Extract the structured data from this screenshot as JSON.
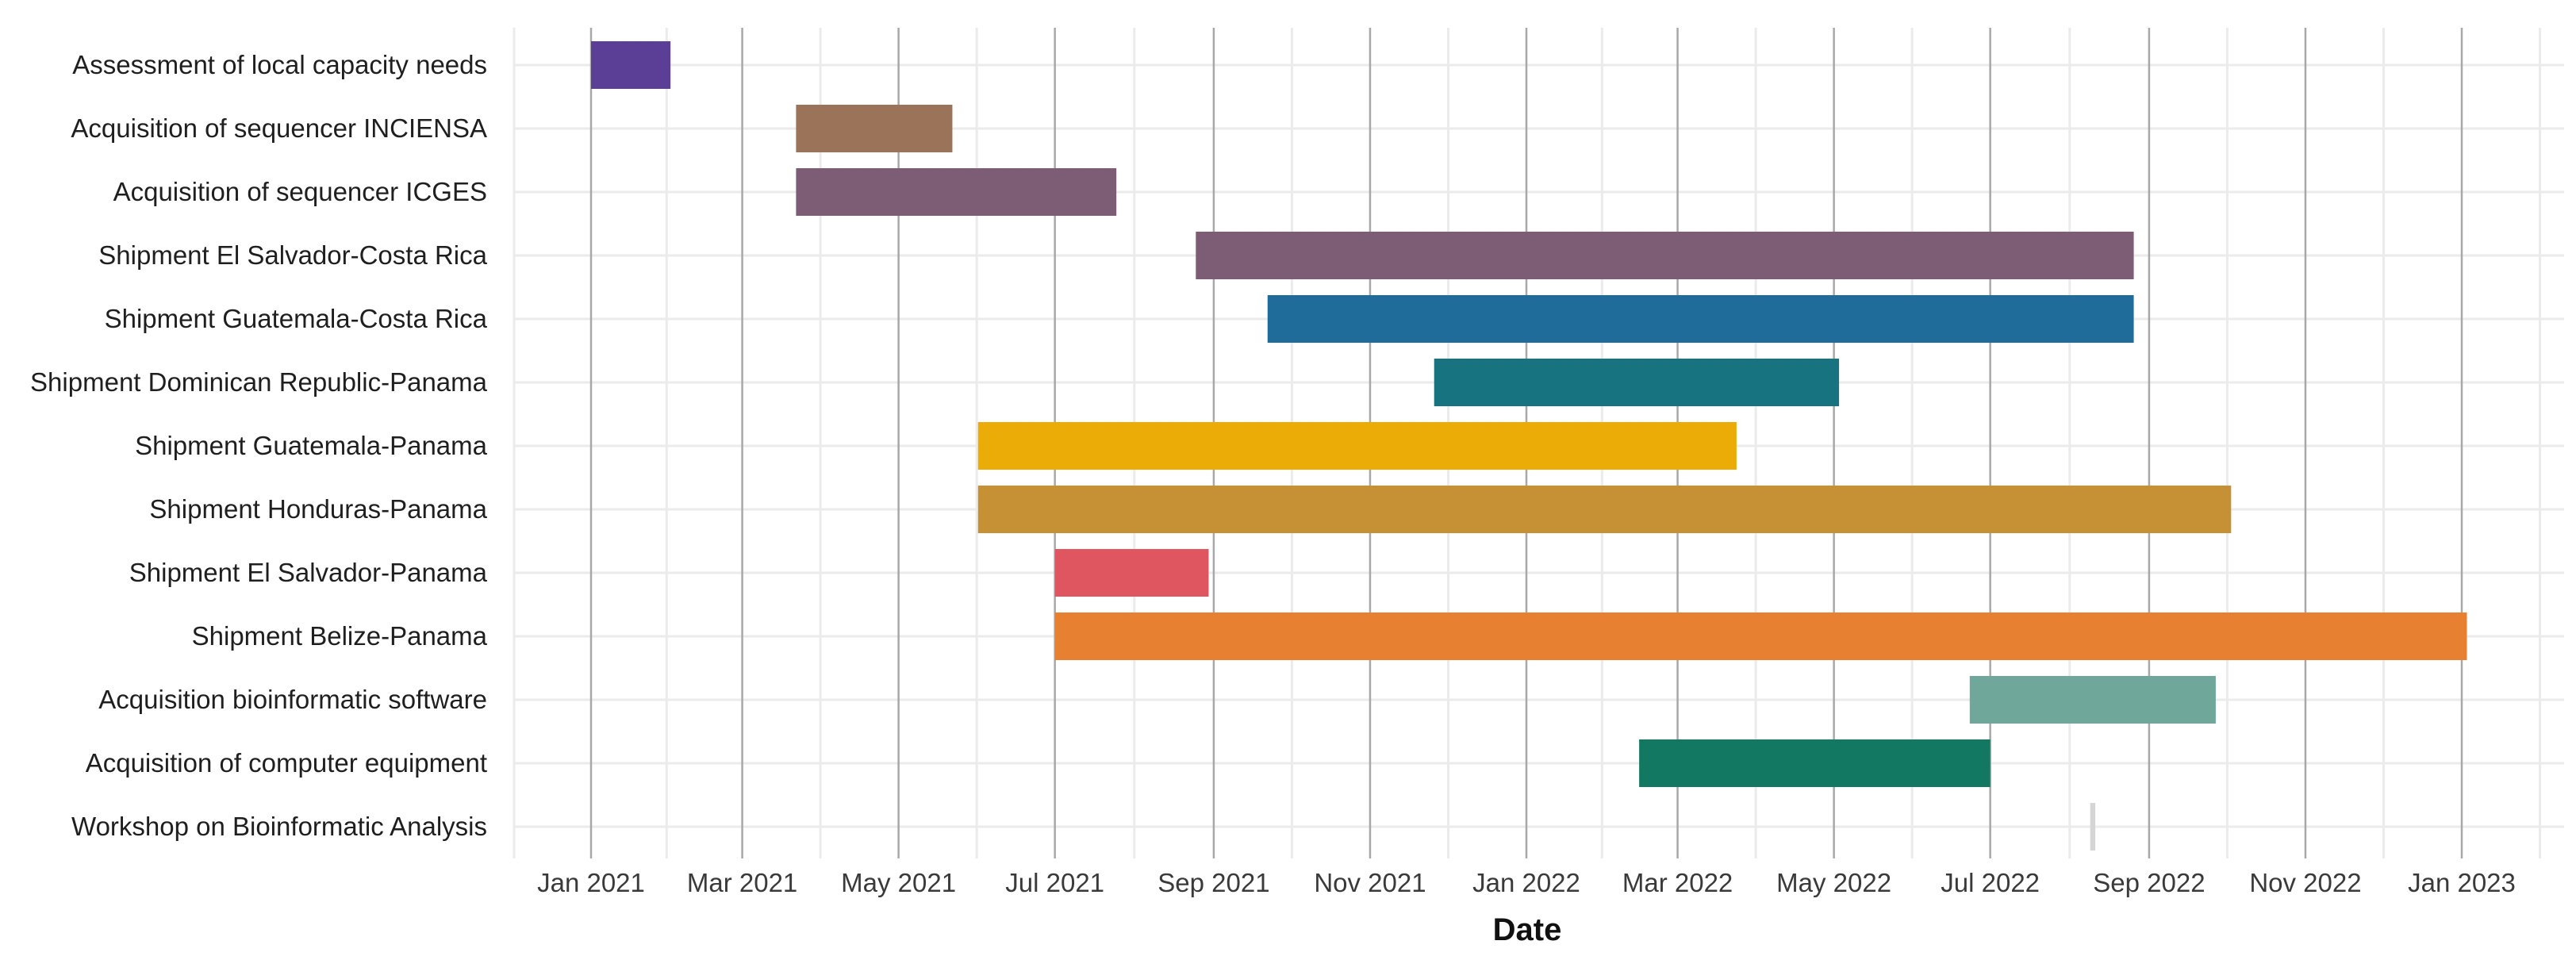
{
  "chart_data": {
    "type": "gantt",
    "xlabel": "Date",
    "x_range": [
      "2020-12-01",
      "2023-02-15"
    ],
    "x_ticks": [
      {
        "date": "2021-01-01",
        "label": "Jan 2021"
      },
      {
        "date": "2021-03-01",
        "label": "Mar 2021"
      },
      {
        "date": "2021-05-01",
        "label": "May 2021"
      },
      {
        "date": "2021-07-01",
        "label": "Jul 2021"
      },
      {
        "date": "2021-09-01",
        "label": "Sep 2021"
      },
      {
        "date": "2021-11-01",
        "label": "Nov 2021"
      },
      {
        "date": "2022-01-01",
        "label": "Jan 2022"
      },
      {
        "date": "2022-03-01",
        "label": "Mar 2022"
      },
      {
        "date": "2022-05-01",
        "label": "May 2022"
      },
      {
        "date": "2022-07-01",
        "label": "Jul 2022"
      },
      {
        "date": "2022-09-01",
        "label": "Sep 2022"
      },
      {
        "date": "2022-11-01",
        "label": "Nov 2022"
      },
      {
        "date": "2023-01-01",
        "label": "Jan 2023"
      }
    ],
    "grid": true,
    "tasks": [
      {
        "name": "Assessment of local capacity needs",
        "start": "2021-01-01",
        "end": "2021-02-01",
        "color": "#5b3f96"
      },
      {
        "name": "Acquisition of sequencer INCIENSA",
        "start": "2021-03-22",
        "end": "2021-05-22",
        "color": "#9b7359"
      },
      {
        "name": "Acquisition of sequencer ICGES",
        "start": "2021-03-22",
        "end": "2021-07-25",
        "color": "#7d5c76"
      },
      {
        "name": "Shipment El Salvador-Costa Rica",
        "start": "2021-08-25",
        "end": "2022-08-26",
        "color": "#7d5c76"
      },
      {
        "name": "Shipment Guatemala-Costa Rica",
        "start": "2021-09-22",
        "end": "2022-08-26",
        "color": "#1f6b9a"
      },
      {
        "name": "Shipment Dominican Republic-Panama",
        "start": "2021-11-26",
        "end": "2022-05-03",
        "color": "#17737f"
      },
      {
        "name": "Shipment Guatemala-Panama",
        "start": "2021-06-01",
        "end": "2022-03-24",
        "color": "#ecac08"
      },
      {
        "name": "Shipment Honduras-Panama",
        "start": "2021-06-01",
        "end": "2022-10-03",
        "color": "#c59134"
      },
      {
        "name": "Shipment El Salvador-Panama",
        "start": "2021-07-01",
        "end": "2021-08-30",
        "color": "#e05660"
      },
      {
        "name": "Shipment Belize-Panama",
        "start": "2021-07-01",
        "end": "2023-01-03",
        "color": "#e88031"
      },
      {
        "name": "Acquisition bioinformatic software",
        "start": "2022-06-23",
        "end": "2022-09-27",
        "color": "#6fa79b"
      },
      {
        "name": "Acquisition of computer equipment",
        "start": "2022-02-14",
        "end": "2022-07-01",
        "color": "#137862"
      },
      {
        "name": "Workshop on Bioinformatic Analysis",
        "start": "2022-08-09",
        "end": "2022-08-11",
        "color": "#d5d5d5"
      }
    ]
  }
}
